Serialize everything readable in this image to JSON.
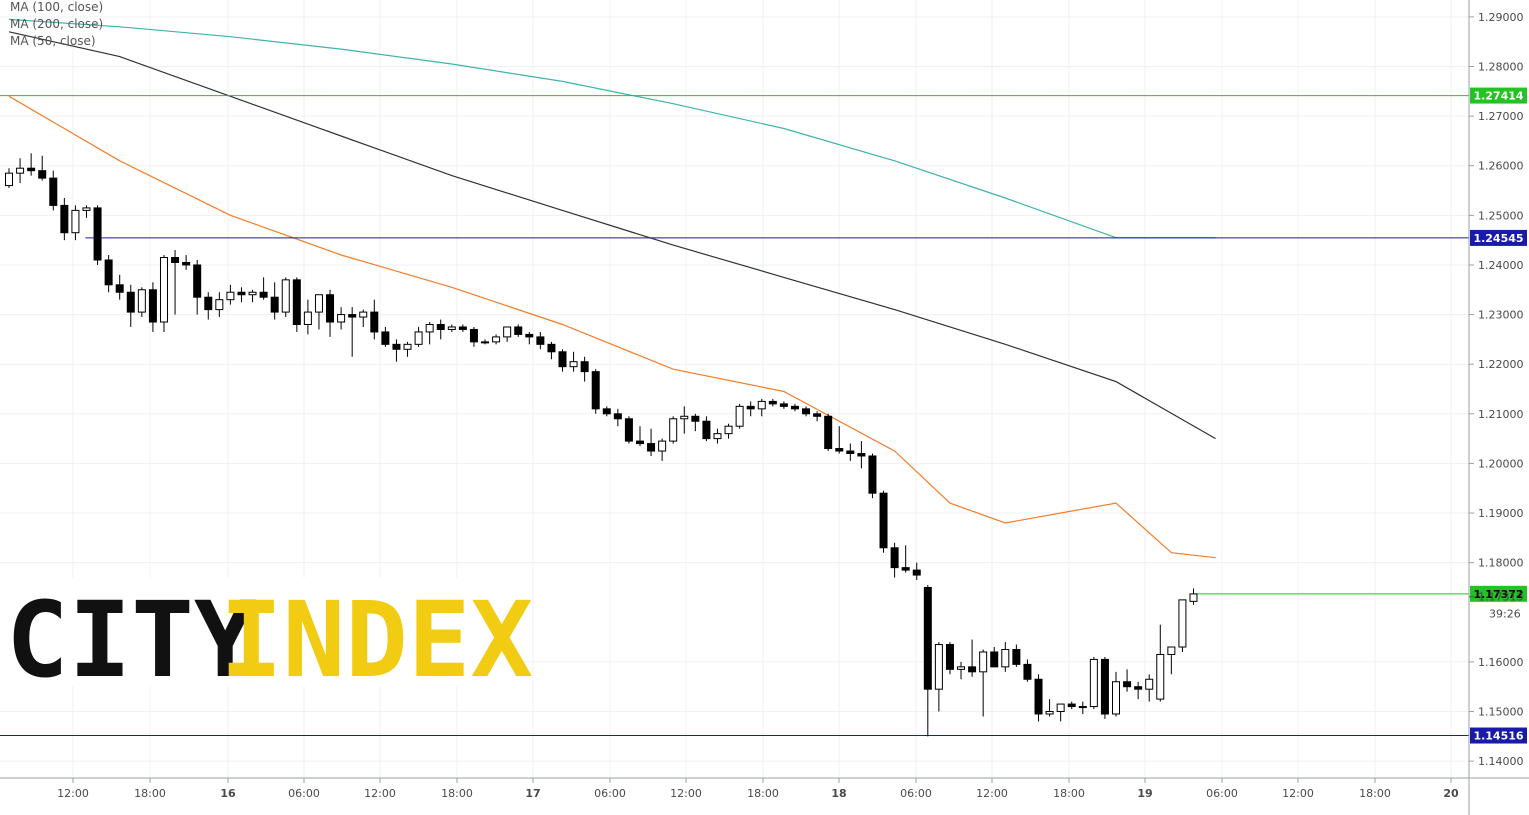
{
  "chart_data": {
    "type": "candlestick",
    "instrument_note": "",
    "ylim": [
      1.1366,
      1.2934
    ],
    "y_ticks": [
      "1.29000",
      "1.28000",
      "1.27000",
      "1.26000",
      "1.25000",
      "1.24000",
      "1.23000",
      "1.22000",
      "1.21000",
      "1.20000",
      "1.19000",
      "1.18000",
      "1.16000",
      "1.15000",
      "1.14000"
    ],
    "x_ticks": [
      "12:00",
      "18:00",
      "16",
      "06:00",
      "12:00",
      "18:00",
      "17",
      "06:00",
      "12:00",
      "18:00",
      "18",
      "06:00",
      "12:00",
      "18:00",
      "19",
      "06:00",
      "12:00",
      "18:00",
      "20"
    ],
    "bold_x_ticks": [
      "16",
      "17",
      "18",
      "19",
      "20"
    ],
    "legend": [
      "MA (100, close)",
      "MA (200, close)",
      "MA (50, close)"
    ],
    "horizontal_levels": [
      {
        "value": 1.27414,
        "label": "1.27414",
        "color": "#22c322",
        "start_bar": 0
      },
      {
        "value": 1.24545,
        "label": "1.24545",
        "color": "#1a1aa8",
        "start_bar": 6
      },
      {
        "value": 1.14516,
        "label": "1.14516",
        "color": "#1a1aa8",
        "start_bar": 0
      }
    ],
    "last_price": {
      "value": 1.17372,
      "label": "1.17372",
      "color": "#22c322"
    },
    "price_marker": {
      "value": 1.17313,
      "label": "1.17313"
    },
    "countdown": "39:26",
    "candles": [
      [
        1.256,
        1.2595,
        1.2555,
        1.2585
      ],
      [
        1.2585,
        1.2615,
        1.2565,
        1.2595
      ],
      [
        1.2595,
        1.2625,
        1.258,
        1.259
      ],
      [
        1.259,
        1.262,
        1.257,
        1.2575
      ],
      [
        1.2575,
        1.259,
        1.251,
        1.252
      ],
      [
        1.252,
        1.2535,
        1.245,
        1.2465
      ],
      [
        1.2465,
        1.252,
        1.245,
        1.251
      ],
      [
        1.251,
        1.252,
        1.2495,
        1.2515
      ],
      [
        1.2515,
        1.252,
        1.24,
        1.241
      ],
      [
        1.241,
        1.242,
        1.2345,
        1.236
      ],
      [
        1.236,
        1.238,
        1.233,
        1.2345
      ],
      [
        1.2345,
        1.236,
        1.2275,
        1.2305
      ],
      [
        1.2305,
        1.2355,
        1.2295,
        1.235
      ],
      [
        1.235,
        1.2365,
        1.2265,
        1.2285
      ],
      [
        1.2285,
        1.242,
        1.2265,
        1.2415
      ],
      [
        1.2415,
        1.243,
        1.23,
        1.2405
      ],
      [
        1.2405,
        1.242,
        1.239,
        1.24
      ],
      [
        1.24,
        1.241,
        1.23,
        1.2335
      ],
      [
        1.2335,
        1.2345,
        1.229,
        1.231
      ],
      [
        1.231,
        1.2345,
        1.2295,
        1.233
      ],
      [
        1.233,
        1.236,
        1.232,
        1.2345
      ],
      [
        1.2345,
        1.2355,
        1.2325,
        1.234
      ],
      [
        1.234,
        1.235,
        1.2325,
        1.2345
      ],
      [
        1.2345,
        1.2375,
        1.233,
        1.2335
      ],
      [
        1.2335,
        1.2365,
        1.229,
        1.2305
      ],
      [
        1.2305,
        1.2375,
        1.2295,
        1.237
      ],
      [
        1.237,
        1.2375,
        1.2265,
        1.228
      ],
      [
        1.228,
        1.233,
        1.226,
        1.2305
      ],
      [
        1.2305,
        1.234,
        1.227,
        1.234
      ],
      [
        1.234,
        1.235,
        1.2255,
        1.2285
      ],
      [
        1.2285,
        1.2315,
        1.227,
        1.23
      ],
      [
        1.23,
        1.2315,
        1.2215,
        1.2295
      ],
      [
        1.2295,
        1.231,
        1.2275,
        1.2305
      ],
      [
        1.2305,
        1.233,
        1.225,
        1.2265
      ],
      [
        1.2265,
        1.2275,
        1.2235,
        1.224
      ],
      [
        1.224,
        1.225,
        1.2205,
        1.223
      ],
      [
        1.223,
        1.2245,
        1.2215,
        1.224
      ],
      [
        1.224,
        1.2275,
        1.2235,
        1.2265
      ],
      [
        1.2265,
        1.2285,
        1.224,
        1.228
      ],
      [
        1.228,
        1.229,
        1.225,
        1.227
      ],
      [
        1.227,
        1.228,
        1.2265,
        1.2275
      ],
      [
        1.2275,
        1.228,
        1.2265,
        1.227
      ],
      [
        1.227,
        1.2275,
        1.2235,
        1.2245
      ],
      [
        1.2245,
        1.225,
        1.224,
        1.2245
      ],
      [
        1.2245,
        1.226,
        1.224,
        1.2255
      ],
      [
        1.2255,
        1.2275,
        1.2245,
        1.2275
      ],
      [
        1.2275,
        1.228,
        1.2255,
        1.226
      ],
      [
        1.226,
        1.2265,
        1.224,
        1.2255
      ],
      [
        1.2255,
        1.2265,
        1.223,
        1.224
      ],
      [
        1.224,
        1.2245,
        1.221,
        1.2225
      ],
      [
        1.2225,
        1.223,
        1.2185,
        1.2195
      ],
      [
        1.2195,
        1.2225,
        1.2185,
        1.2205
      ],
      [
        1.2205,
        1.2215,
        1.2165,
        1.2185
      ],
      [
        1.2185,
        1.219,
        1.21,
        1.211
      ],
      [
        1.211,
        1.2115,
        1.2095,
        1.21
      ],
      [
        1.21,
        1.211,
        1.2075,
        1.209
      ],
      [
        1.209,
        1.2095,
        1.204,
        1.2045
      ],
      [
        1.2045,
        1.2075,
        1.2035,
        1.204
      ],
      [
        1.204,
        1.207,
        1.2015,
        1.2025
      ],
      [
        1.2025,
        1.205,
        1.2005,
        1.2045
      ],
      [
        1.2045,
        1.2095,
        1.204,
        1.209
      ],
      [
        1.209,
        1.2115,
        1.206,
        1.2095
      ],
      [
        1.2095,
        1.21,
        1.2065,
        1.2085
      ],
      [
        1.2085,
        1.2095,
        1.2045,
        1.205
      ],
      [
        1.205,
        1.207,
        1.204,
        1.206
      ],
      [
        1.206,
        1.208,
        1.205,
        1.2075
      ],
      [
        1.2075,
        1.212,
        1.207,
        1.2115
      ],
      [
        1.2115,
        1.2125,
        1.2095,
        1.211
      ],
      [
        1.211,
        1.213,
        1.2095,
        1.2125
      ],
      [
        1.2125,
        1.213,
        1.2115,
        1.212
      ],
      [
        1.212,
        1.2125,
        1.211,
        1.2115
      ],
      [
        1.2115,
        1.212,
        1.2105,
        1.211
      ],
      [
        1.211,
        1.2115,
        1.2095,
        1.21
      ],
      [
        1.21,
        1.2105,
        1.2085,
        1.2095
      ],
      [
        1.2095,
        1.21,
        1.2025,
        1.203
      ],
      [
        1.203,
        1.2075,
        1.202,
        1.2025
      ],
      [
        1.2025,
        1.204,
        1.2005,
        1.202
      ],
      [
        1.202,
        1.2045,
        1.199,
        1.2015
      ],
      [
        1.2015,
        1.202,
        1.193,
        1.194
      ],
      [
        1.194,
        1.1945,
        1.182,
        1.183
      ],
      [
        1.183,
        1.184,
        1.177,
        1.179
      ],
      [
        1.179,
        1.1835,
        1.178,
        1.1785
      ],
      [
        1.1785,
        1.18,
        1.1765,
        1.1775
      ],
      [
        1.175,
        1.1755,
        1.145,
        1.1545
      ],
      [
        1.1545,
        1.164,
        1.15,
        1.1635
      ],
      [
        1.1635,
        1.164,
        1.1575,
        1.1585
      ],
      [
        1.1585,
        1.16,
        1.1565,
        1.159
      ],
      [
        1.159,
        1.1645,
        1.157,
        1.158
      ],
      [
        1.158,
        1.1625,
        1.149,
        1.162
      ],
      [
        1.162,
        1.163,
        1.159,
        1.159
      ],
      [
        1.159,
        1.164,
        1.158,
        1.1625
      ],
      [
        1.1625,
        1.1635,
        1.159,
        1.1595
      ],
      [
        1.1595,
        1.1605,
        1.156,
        1.1565
      ],
      [
        1.1565,
        1.1575,
        1.148,
        1.1495
      ],
      [
        1.1495,
        1.1525,
        1.149,
        1.15
      ],
      [
        1.15,
        1.1515,
        1.148,
        1.1515
      ],
      [
        1.1515,
        1.152,
        1.1505,
        1.151
      ],
      [
        1.151,
        1.152,
        1.1495,
        1.151
      ],
      [
        1.151,
        1.161,
        1.1505,
        1.1605
      ],
      [
        1.1605,
        1.161,
        1.1485,
        1.1495
      ],
      [
        1.1495,
        1.158,
        1.149,
        1.156
      ],
      [
        1.156,
        1.1585,
        1.154,
        1.155
      ],
      [
        1.155,
        1.156,
        1.1525,
        1.1545
      ],
      [
        1.1545,
        1.1575,
        1.152,
        1.1565
      ],
      [
        1.1525,
        1.1675,
        1.152,
        1.1615
      ],
      [
        1.1615,
        1.163,
        1.1575,
        1.163
      ],
      [
        1.163,
        1.1725,
        1.162,
        1.1725
      ],
      [
        1.1722,
        1.1748,
        1.1715,
        1.1737
      ]
    ],
    "moving_averages": [
      {
        "name": "MA (100, close)",
        "color": "#2f3236",
        "points": [
          [
            0,
            1.287
          ],
          [
            10,
            1.282
          ],
          [
            20,
            1.274
          ],
          [
            30,
            1.266
          ],
          [
            40,
            1.258
          ],
          [
            50,
            1.251
          ],
          [
            60,
            1.244
          ],
          [
            70,
            1.2375
          ],
          [
            80,
            1.231
          ],
          [
            90,
            1.224
          ],
          [
            100,
            1.2165
          ],
          [
            109,
            1.205
          ]
        ]
      },
      {
        "name": "MA (200, close)",
        "color": "#3fb3ad",
        "points": [
          [
            0,
            1.2895
          ],
          [
            10,
            1.288
          ],
          [
            20,
            1.286
          ],
          [
            30,
            1.2835
          ],
          [
            40,
            1.2805
          ],
          [
            50,
            1.277
          ],
          [
            60,
            1.2725
          ],
          [
            70,
            1.2675
          ],
          [
            80,
            1.261
          ],
          [
            90,
            1.2535
          ],
          [
            100,
            1.2455
          ],
          [
            109,
            1.2455
          ]
        ]
      },
      {
        "name": "MA (50, close)",
        "color": "#f47d2a",
        "points": [
          [
            0,
            1.274
          ],
          [
            10,
            1.261
          ],
          [
            20,
            1.25
          ],
          [
            30,
            1.242
          ],
          [
            40,
            1.2355
          ],
          [
            50,
            1.228
          ],
          [
            60,
            1.219
          ],
          [
            70,
            1.2145
          ],
          [
            80,
            1.2025
          ],
          [
            85,
            1.192
          ],
          [
            90,
            1.188
          ],
          [
            95,
            1.19
          ],
          [
            100,
            1.192
          ],
          [
            105,
            1.182
          ],
          [
            109,
            1.181
          ]
        ]
      }
    ]
  },
  "logo": {
    "word1": "CITY",
    "word2": "INDEX",
    "color1": "#111111",
    "color2": "#f2cc13"
  }
}
